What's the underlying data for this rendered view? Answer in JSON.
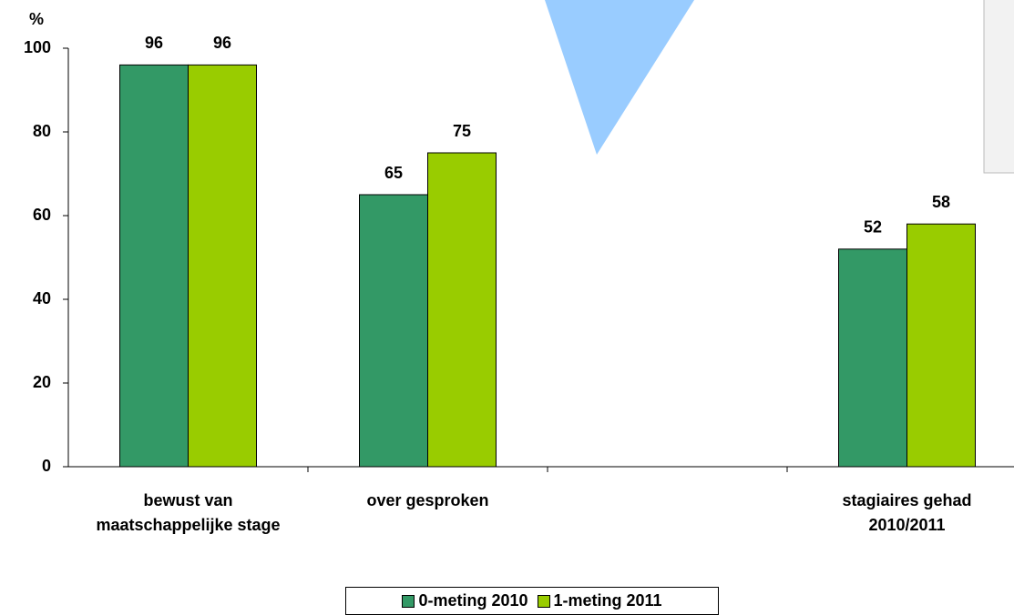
{
  "chart_data": {
    "type": "bar",
    "y_label": "%",
    "categories": [
      "bewust van maatschappelijke stage",
      "over gesproken",
      null,
      "stagiaires gehad 2010/2011"
    ],
    "series": [
      {
        "name": "0-meting 2010",
        "color": "#339966",
        "values": [
          96,
          65,
          null,
          52
        ]
      },
      {
        "name": "1-meting 2011",
        "color": "#99cc00",
        "values": [
          96,
          75,
          null,
          58
        ]
      }
    ],
    "ylim": [
      0,
      100
    ],
    "yticks": [
      0,
      20,
      40,
      60,
      80,
      100
    ],
    "grid": false
  }
}
